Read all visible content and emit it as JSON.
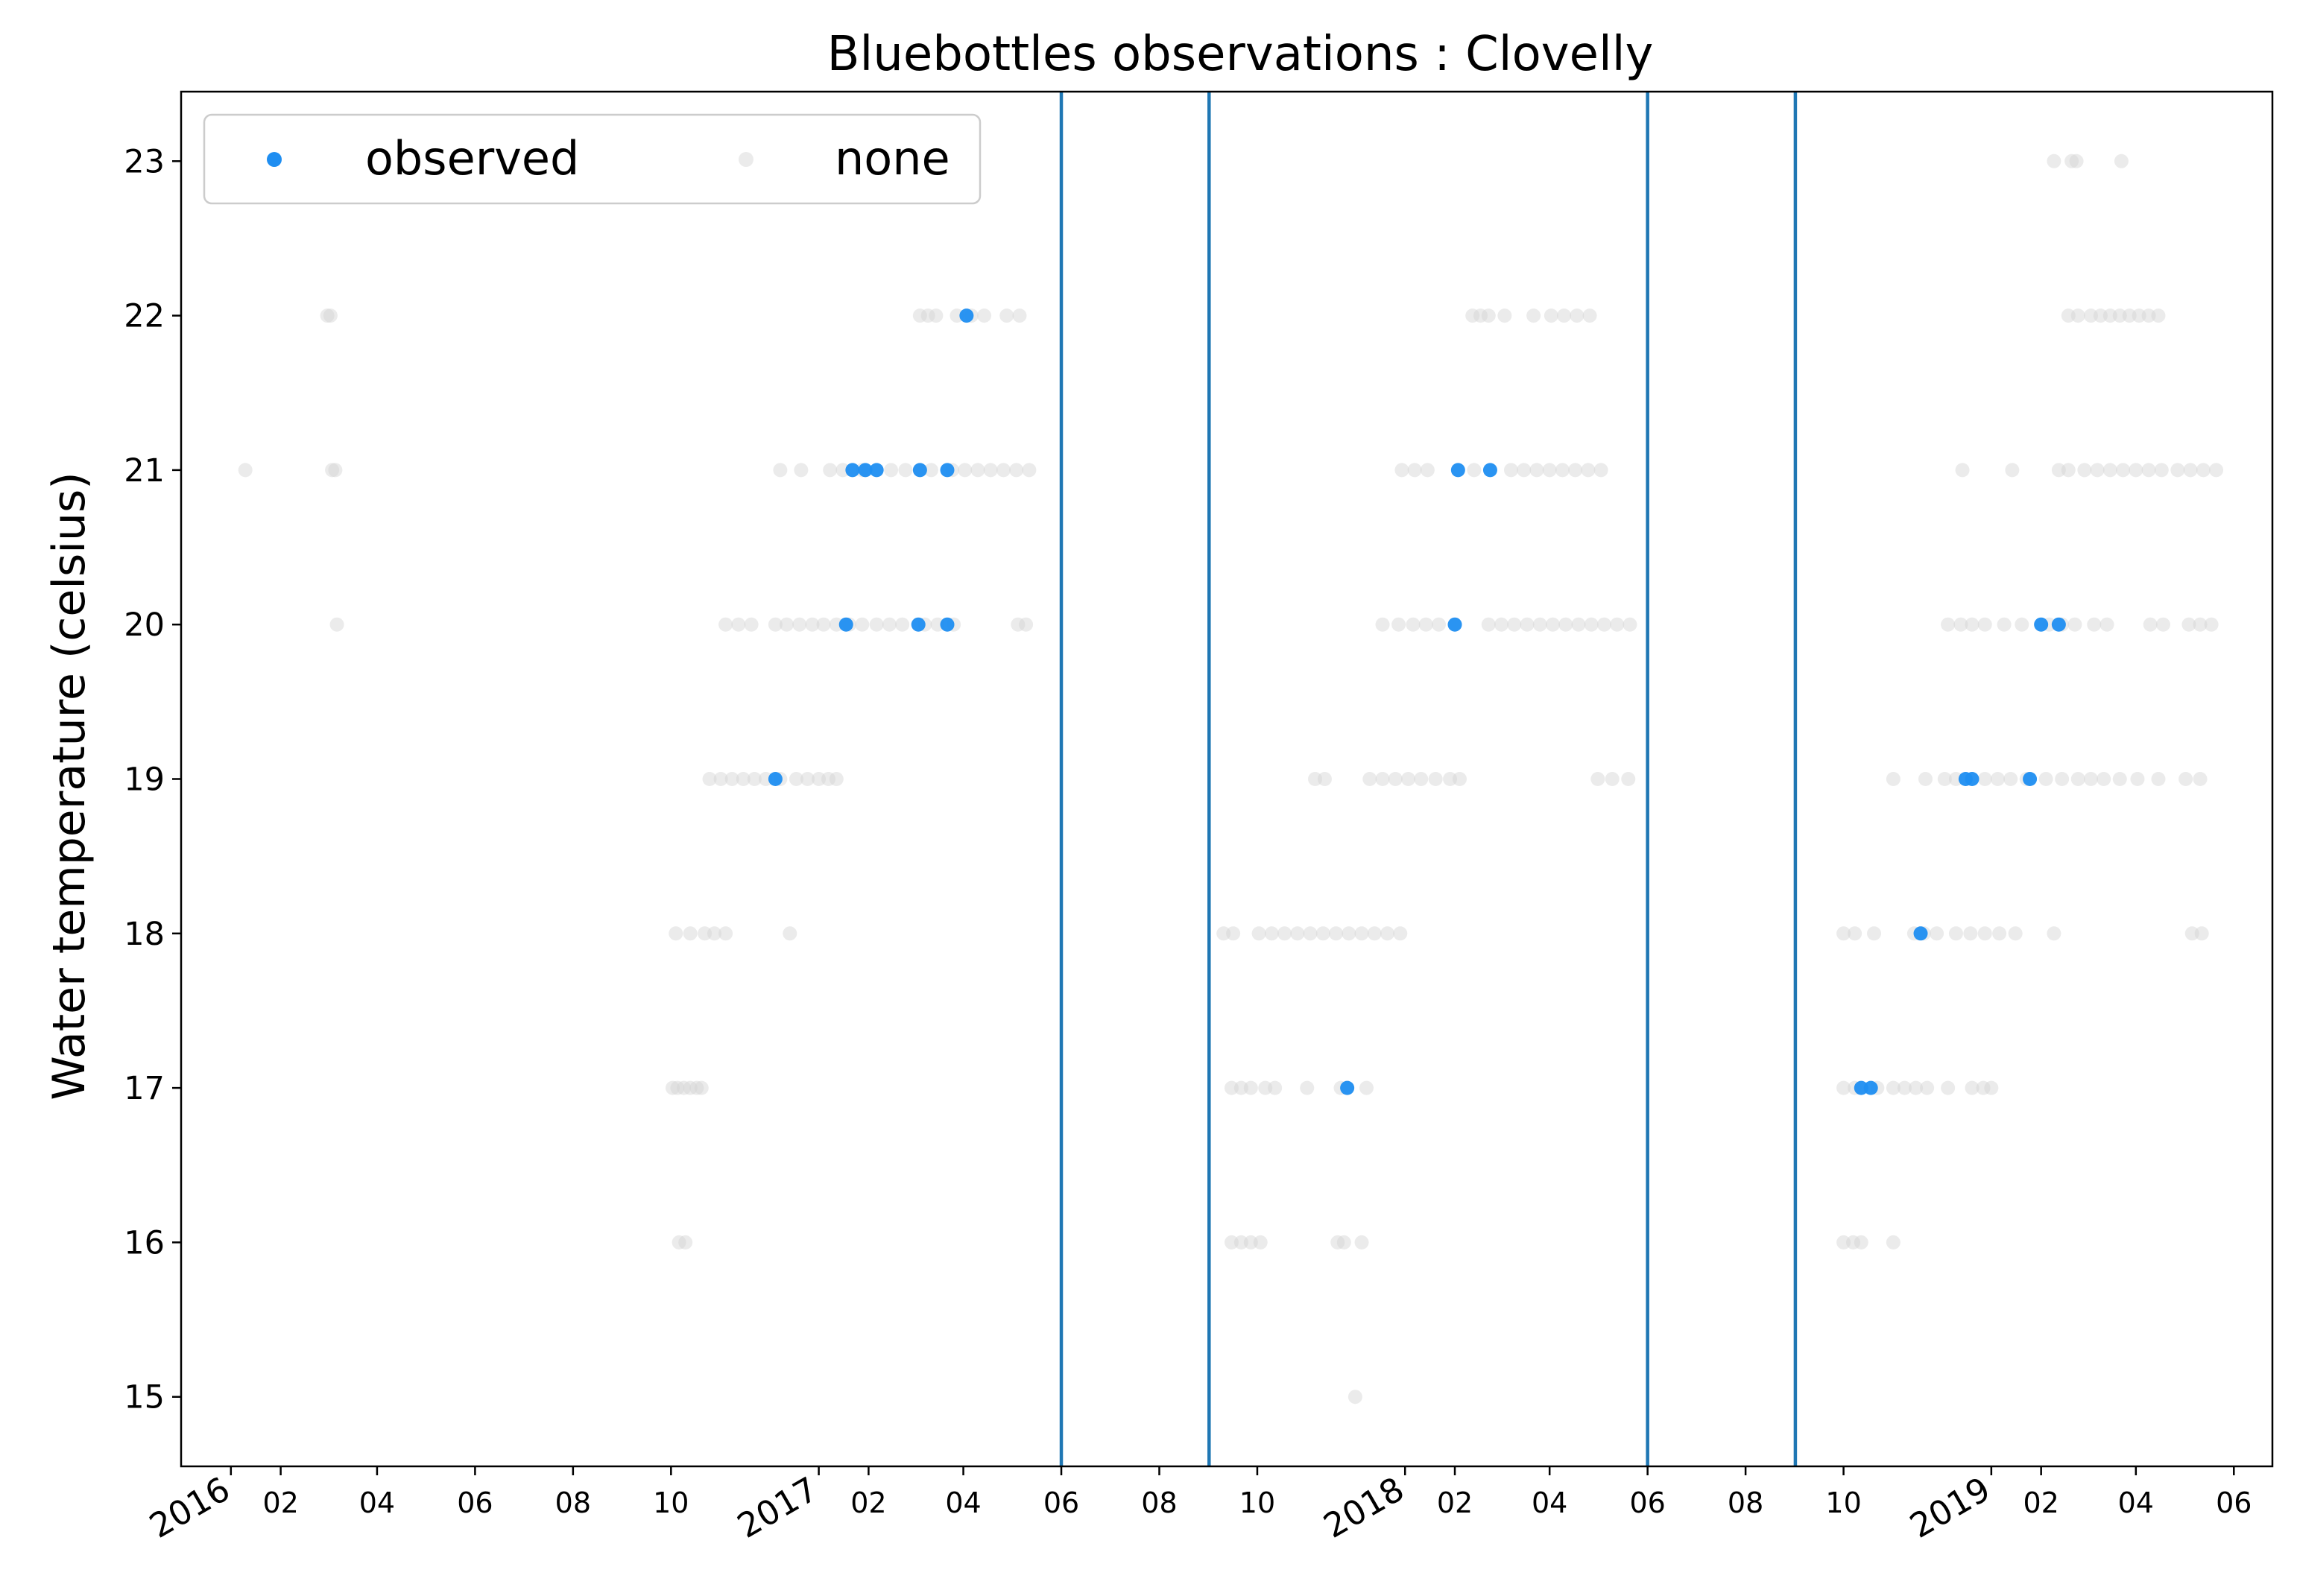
{
  "chart_data": {
    "type": "scatter",
    "title": "Bluebottles observations : Clovelly",
    "xlabel": "",
    "ylabel": "Water temperature (celsius)",
    "xlim": [
      "2015-12-01",
      "2019-06-25"
    ],
    "ylim": [
      14.55,
      23.45
    ],
    "grid": false,
    "legend_position": "top-left",
    "yticks": [
      15,
      16,
      17,
      18,
      19,
      20,
      21,
      22,
      23
    ],
    "x_tick_dates": [
      "2016-01-01",
      "2016-02-01",
      "2016-04-01",
      "2016-06-01",
      "2016-08-01",
      "2016-10-01",
      "2017-01-01",
      "2017-02-01",
      "2017-04-01",
      "2017-06-01",
      "2017-08-01",
      "2017-10-01",
      "2018-01-01",
      "2018-02-01",
      "2018-04-01",
      "2018-06-01",
      "2018-08-01",
      "2018-10-01",
      "2019-01-01",
      "2019-02-01",
      "2019-04-01",
      "2019-06-01"
    ],
    "x_tick_labels": [
      "2016",
      "02",
      "04",
      "06",
      "08",
      "10",
      "2017",
      "02",
      "04",
      "06",
      "08",
      "10",
      "2018",
      "02",
      "04",
      "06",
      "08",
      "10",
      "2019",
      "02",
      "04",
      "06"
    ],
    "season_lines": [
      "2017-06-01",
      "2017-09-01",
      "2018-06-01",
      "2018-09-01"
    ],
    "series": [
      {
        "name": "none",
        "color": "#d3d3d3",
        "points": [
          [
            "2016-03-01",
            22
          ],
          [
            "2016-03-03",
            22
          ],
          [
            "2016-01-10",
            21
          ],
          [
            "2016-03-04",
            21
          ],
          [
            "2016-03-06",
            21
          ],
          [
            "2016-03-07",
            20
          ],
          [
            "2016-10-02",
            17
          ],
          [
            "2016-10-05",
            17
          ],
          [
            "2016-10-09",
            17
          ],
          [
            "2016-10-13",
            17
          ],
          [
            "2016-10-17",
            17
          ],
          [
            "2016-10-20",
            17
          ],
          [
            "2016-10-06",
            16
          ],
          [
            "2016-10-10",
            16
          ],
          [
            "2016-10-04",
            18
          ],
          [
            "2016-10-13",
            18
          ],
          [
            "2016-10-22",
            18
          ],
          [
            "2016-10-28",
            18
          ],
          [
            "2016-11-04",
            18
          ],
          [
            "2016-12-14",
            18
          ],
          [
            "2016-10-25",
            19
          ],
          [
            "2016-11-01",
            19
          ],
          [
            "2016-11-08",
            19
          ],
          [
            "2016-11-15",
            19
          ],
          [
            "2016-11-22",
            19
          ],
          [
            "2016-11-29",
            19
          ],
          [
            "2016-12-08",
            19
          ],
          [
            "2016-12-18",
            19
          ],
          [
            "2016-12-25",
            19
          ],
          [
            "2017-01-01",
            19
          ],
          [
            "2017-01-07",
            19
          ],
          [
            "2017-01-12",
            19
          ],
          [
            "2016-11-04",
            20
          ],
          [
            "2016-11-12",
            20
          ],
          [
            "2016-11-20",
            20
          ],
          [
            "2016-12-05",
            20
          ],
          [
            "2016-12-12",
            20
          ],
          [
            "2016-12-20",
            20
          ],
          [
            "2016-12-28",
            20
          ],
          [
            "2017-01-04",
            20
          ],
          [
            "2017-01-12",
            20
          ],
          [
            "2017-01-20",
            20
          ],
          [
            "2017-01-28",
            20
          ],
          [
            "2017-02-06",
            20
          ],
          [
            "2017-02-14",
            20
          ],
          [
            "2017-02-22",
            20
          ],
          [
            "2017-03-08",
            20
          ],
          [
            "2017-03-16",
            20
          ],
          [
            "2017-03-26",
            20
          ],
          [
            "2017-05-05",
            20
          ],
          [
            "2017-05-10",
            20
          ],
          [
            "2016-12-08",
            21
          ],
          [
            "2016-12-21",
            21
          ],
          [
            "2017-01-08",
            21
          ],
          [
            "2017-01-16",
            21
          ],
          [
            "2017-01-28",
            21
          ],
          [
            "2017-02-15",
            21
          ],
          [
            "2017-02-24",
            21
          ],
          [
            "2017-03-05",
            21
          ],
          [
            "2017-03-12",
            21
          ],
          [
            "2017-03-25",
            21
          ],
          [
            "2017-04-02",
            21
          ],
          [
            "2017-04-10",
            21
          ],
          [
            "2017-04-18",
            21
          ],
          [
            "2017-04-26",
            21
          ],
          [
            "2017-05-04",
            21
          ],
          [
            "2017-05-12",
            21
          ],
          [
            "2017-03-05",
            22
          ],
          [
            "2017-03-10",
            22
          ],
          [
            "2017-03-15",
            22
          ],
          [
            "2017-03-28",
            22
          ],
          [
            "2017-04-06",
            22
          ],
          [
            "2017-04-14",
            22
          ],
          [
            "2017-04-28",
            22
          ],
          [
            "2017-05-06",
            22
          ],
          [
            "2017-09-15",
            17
          ],
          [
            "2017-09-21",
            17
          ],
          [
            "2017-09-27",
            17
          ],
          [
            "2017-10-06",
            17
          ],
          [
            "2017-10-12",
            17
          ],
          [
            "2017-11-01",
            17
          ],
          [
            "2017-11-22",
            17
          ],
          [
            "2017-11-26",
            17
          ],
          [
            "2017-12-08",
            17
          ],
          [
            "2017-09-15",
            16
          ],
          [
            "2017-09-21",
            16
          ],
          [
            "2017-09-27",
            16
          ],
          [
            "2017-10-03",
            16
          ],
          [
            "2017-11-20",
            16
          ],
          [
            "2017-11-24",
            16
          ],
          [
            "2017-12-05",
            16
          ],
          [
            "2017-12-01",
            15
          ],
          [
            "2017-09-10",
            18
          ],
          [
            "2017-09-16",
            18
          ],
          [
            "2017-10-02",
            18
          ],
          [
            "2017-10-10",
            18
          ],
          [
            "2017-10-18",
            18
          ],
          [
            "2017-10-26",
            18
          ],
          [
            "2017-11-03",
            18
          ],
          [
            "2017-11-11",
            18
          ],
          [
            "2017-11-19",
            18
          ],
          [
            "2017-11-27",
            18
          ],
          [
            "2017-12-05",
            18
          ],
          [
            "2017-12-13",
            18
          ],
          [
            "2017-12-21",
            18
          ],
          [
            "2017-12-29",
            18
          ],
          [
            "2017-11-06",
            19
          ],
          [
            "2017-11-12",
            19
          ],
          [
            "2017-12-10",
            19
          ],
          [
            "2017-12-18",
            19
          ],
          [
            "2017-12-26",
            19
          ],
          [
            "2018-01-03",
            19
          ],
          [
            "2018-01-11",
            19
          ],
          [
            "2018-01-20",
            19
          ],
          [
            "2018-01-29",
            19
          ],
          [
            "2018-02-04",
            19
          ],
          [
            "2018-05-01",
            19
          ],
          [
            "2018-05-10",
            19
          ],
          [
            "2018-05-20",
            19
          ],
          [
            "2017-12-18",
            20
          ],
          [
            "2017-12-28",
            20
          ],
          [
            "2018-01-06",
            20
          ],
          [
            "2018-01-14",
            20
          ],
          [
            "2018-01-22",
            20
          ],
          [
            "2018-02-22",
            20
          ],
          [
            "2018-03-02",
            20
          ],
          [
            "2018-03-10",
            20
          ],
          [
            "2018-03-18",
            20
          ],
          [
            "2018-03-26",
            20
          ],
          [
            "2018-04-03",
            20
          ],
          [
            "2018-04-11",
            20
          ],
          [
            "2018-04-19",
            20
          ],
          [
            "2018-04-27",
            20
          ],
          [
            "2018-05-05",
            20
          ],
          [
            "2018-05-13",
            20
          ],
          [
            "2018-05-21",
            20
          ],
          [
            "2017-12-30",
            21
          ],
          [
            "2018-01-07",
            21
          ],
          [
            "2018-01-15",
            21
          ],
          [
            "2018-02-13",
            21
          ],
          [
            "2018-03-08",
            21
          ],
          [
            "2018-03-16",
            21
          ],
          [
            "2018-03-24",
            21
          ],
          [
            "2018-04-01",
            21
          ],
          [
            "2018-04-09",
            21
          ],
          [
            "2018-04-17",
            21
          ],
          [
            "2018-04-25",
            21
          ],
          [
            "2018-05-03",
            21
          ],
          [
            "2018-02-12",
            22
          ],
          [
            "2018-02-17",
            22
          ],
          [
            "2018-02-22",
            22
          ],
          [
            "2018-03-04",
            22
          ],
          [
            "2018-03-22",
            22
          ],
          [
            "2018-04-02",
            22
          ],
          [
            "2018-04-10",
            22
          ],
          [
            "2018-04-18",
            22
          ],
          [
            "2018-04-26",
            22
          ],
          [
            "2018-10-01",
            16
          ],
          [
            "2018-10-07",
            16
          ],
          [
            "2018-10-12",
            16
          ],
          [
            "2018-11-01",
            16
          ],
          [
            "2018-10-01",
            17
          ],
          [
            "2018-10-08",
            17
          ],
          [
            "2018-10-22",
            17
          ],
          [
            "2018-11-01",
            17
          ],
          [
            "2018-11-08",
            17
          ],
          [
            "2018-11-15",
            17
          ],
          [
            "2018-11-22",
            17
          ],
          [
            "2018-12-05",
            17
          ],
          [
            "2018-12-20",
            17
          ],
          [
            "2018-12-27",
            17
          ],
          [
            "2019-01-01",
            17
          ],
          [
            "2018-10-01",
            18
          ],
          [
            "2018-10-08",
            18
          ],
          [
            "2018-10-20",
            18
          ],
          [
            "2018-11-14",
            18
          ],
          [
            "2018-11-20",
            18
          ],
          [
            "2018-11-28",
            18
          ],
          [
            "2018-12-10",
            18
          ],
          [
            "2018-12-19",
            18
          ],
          [
            "2018-12-28",
            18
          ],
          [
            "2019-01-06",
            18
          ],
          [
            "2019-01-16",
            18
          ],
          [
            "2019-02-09",
            18
          ],
          [
            "2019-05-06",
            18
          ],
          [
            "2019-05-12",
            18
          ],
          [
            "2018-11-01",
            19
          ],
          [
            "2018-11-21",
            19
          ],
          [
            "2018-12-03",
            19
          ],
          [
            "2018-12-10",
            19
          ],
          [
            "2018-12-28",
            19
          ],
          [
            "2019-01-05",
            19
          ],
          [
            "2019-01-13",
            19
          ],
          [
            "2019-01-23",
            19
          ],
          [
            "2019-02-04",
            19
          ],
          [
            "2019-02-14",
            19
          ],
          [
            "2019-02-24",
            19
          ],
          [
            "2019-03-04",
            19
          ],
          [
            "2019-03-12",
            19
          ],
          [
            "2019-03-22",
            19
          ],
          [
            "2019-04-02",
            19
          ],
          [
            "2019-04-15",
            19
          ],
          [
            "2019-05-02",
            19
          ],
          [
            "2019-05-11",
            19
          ],
          [
            "2018-12-05",
            20
          ],
          [
            "2018-12-13",
            20
          ],
          [
            "2018-12-20",
            20
          ],
          [
            "2018-12-28",
            20
          ],
          [
            "2019-01-09",
            20
          ],
          [
            "2019-01-20",
            20
          ],
          [
            "2019-02-06",
            20
          ],
          [
            "2019-02-14",
            20
          ],
          [
            "2019-02-22",
            20
          ],
          [
            "2019-03-06",
            20
          ],
          [
            "2019-03-14",
            20
          ],
          [
            "2019-04-10",
            20
          ],
          [
            "2019-04-18",
            20
          ],
          [
            "2019-05-04",
            20
          ],
          [
            "2019-05-11",
            20
          ],
          [
            "2019-05-18",
            20
          ],
          [
            "2018-12-14",
            21
          ],
          [
            "2019-01-14",
            21
          ],
          [
            "2019-02-12",
            21
          ],
          [
            "2019-02-18",
            21
          ],
          [
            "2019-02-28",
            21
          ],
          [
            "2019-03-08",
            21
          ],
          [
            "2019-03-16",
            21
          ],
          [
            "2019-03-24",
            21
          ],
          [
            "2019-04-01",
            21
          ],
          [
            "2019-04-09",
            21
          ],
          [
            "2019-04-17",
            21
          ],
          [
            "2019-04-27",
            21
          ],
          [
            "2019-05-05",
            21
          ],
          [
            "2019-05-13",
            21
          ],
          [
            "2019-05-21",
            21
          ],
          [
            "2019-02-18",
            22
          ],
          [
            "2019-02-24",
            22
          ],
          [
            "2019-03-04",
            22
          ],
          [
            "2019-03-10",
            22
          ],
          [
            "2019-03-16",
            22
          ],
          [
            "2019-03-22",
            22
          ],
          [
            "2019-03-28",
            22
          ],
          [
            "2019-04-03",
            22
          ],
          [
            "2019-04-09",
            22
          ],
          [
            "2019-04-15",
            22
          ],
          [
            "2019-02-09",
            23
          ],
          [
            "2019-02-20",
            23
          ],
          [
            "2019-02-23",
            23
          ],
          [
            "2019-03-23",
            23
          ]
        ]
      },
      {
        "name": "observed",
        "color": "#1f8ef1",
        "points": [
          [
            "2016-12-05",
            19
          ],
          [
            "2017-01-18",
            20
          ],
          [
            "2017-03-04",
            20
          ],
          [
            "2017-03-22",
            20
          ],
          [
            "2017-01-22",
            21
          ],
          [
            "2017-01-30",
            21
          ],
          [
            "2017-02-06",
            21
          ],
          [
            "2017-03-05",
            21
          ],
          [
            "2017-03-22",
            21
          ],
          [
            "2017-04-03",
            22
          ],
          [
            "2017-11-26",
            17
          ],
          [
            "2018-02-01",
            20
          ],
          [
            "2018-02-03",
            21
          ],
          [
            "2018-02-23",
            21
          ],
          [
            "2018-10-12",
            17
          ],
          [
            "2018-10-18",
            17
          ],
          [
            "2018-11-18",
            18
          ],
          [
            "2018-12-16",
            19
          ],
          [
            "2018-12-20",
            19
          ],
          [
            "2019-01-25",
            19
          ],
          [
            "2019-02-01",
            20
          ],
          [
            "2019-02-12",
            20
          ]
        ]
      }
    ]
  }
}
